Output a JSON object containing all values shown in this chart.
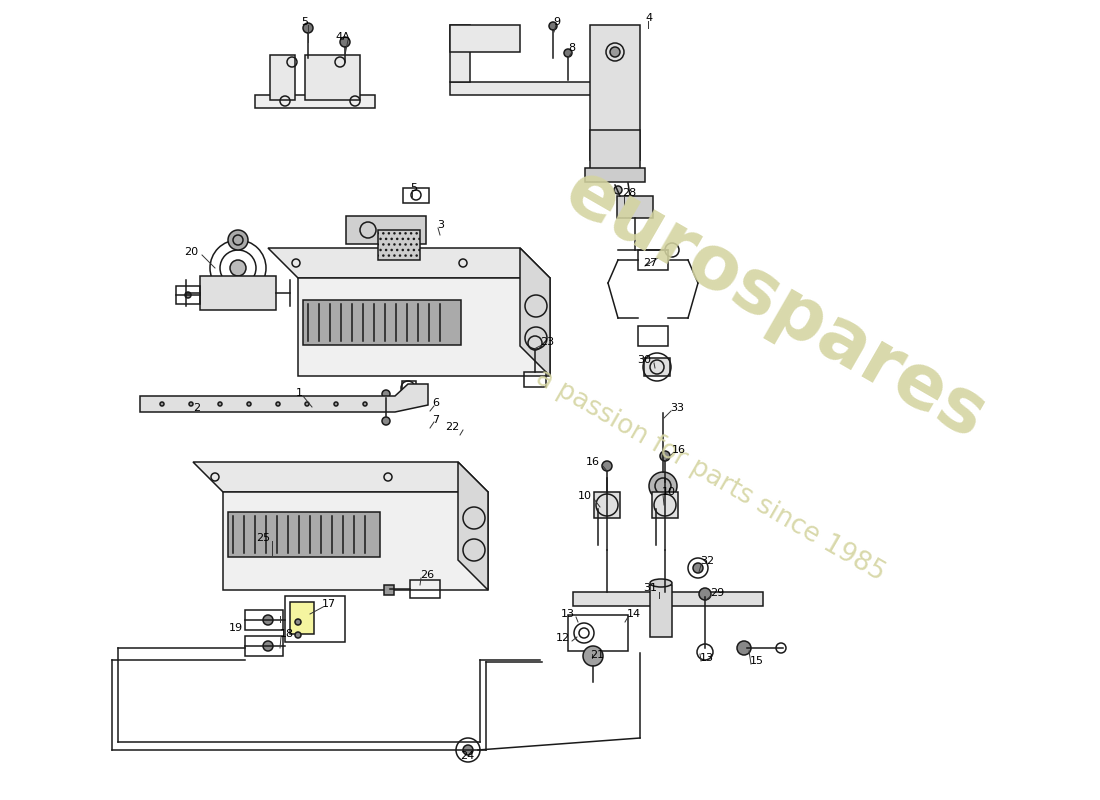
{
  "bg_color": "#ffffff",
  "line_color": "#1a1a1a",
  "watermark1": "eurospares",
  "watermark2": "a passion for parts since 1985",
  "wm_color": "#d4d4a0",
  "labels": [
    [
      305,
      22,
      "5",
      "center"
    ],
    [
      343,
      37,
      "4A",
      "center"
    ],
    [
      553,
      22,
      "9",
      "left"
    ],
    [
      568,
      48,
      "8",
      "left"
    ],
    [
      645,
      18,
      "4",
      "left"
    ],
    [
      410,
      188,
      "5",
      "left"
    ],
    [
      437,
      225,
      "3",
      "left"
    ],
    [
      198,
      252,
      "20",
      "right"
    ],
    [
      303,
      393,
      "1",
      "right"
    ],
    [
      200,
      408,
      "2",
      "right"
    ],
    [
      432,
      403,
      "6",
      "left"
    ],
    [
      432,
      420,
      "7",
      "left"
    ],
    [
      445,
      427,
      "22",
      "left"
    ],
    [
      540,
      342,
      "23",
      "left"
    ],
    [
      622,
      193,
      "28",
      "left"
    ],
    [
      643,
      263,
      "27",
      "left"
    ],
    [
      651,
      360,
      "30",
      "right"
    ],
    [
      670,
      408,
      "33",
      "left"
    ],
    [
      270,
      538,
      "25",
      "right"
    ],
    [
      420,
      575,
      "26",
      "left"
    ],
    [
      322,
      604,
      "17",
      "left"
    ],
    [
      280,
      634,
      "18",
      "left"
    ],
    [
      243,
      628,
      "19",
      "right"
    ],
    [
      600,
      462,
      "16",
      "right"
    ],
    [
      672,
      450,
      "16",
      "left"
    ],
    [
      592,
      496,
      "10",
      "right"
    ],
    [
      662,
      492,
      "10",
      "left"
    ],
    [
      657,
      588,
      "31",
      "right"
    ],
    [
      700,
      561,
      "32",
      "left"
    ],
    [
      710,
      593,
      "29",
      "left"
    ],
    [
      575,
      614,
      "13",
      "right"
    ],
    [
      627,
      614,
      "14",
      "left"
    ],
    [
      700,
      658,
      "13",
      "left"
    ],
    [
      750,
      661,
      "15",
      "left"
    ],
    [
      570,
      638,
      "12",
      "right"
    ],
    [
      590,
      655,
      "21",
      "left"
    ],
    [
      467,
      756,
      "24",
      "center"
    ]
  ]
}
